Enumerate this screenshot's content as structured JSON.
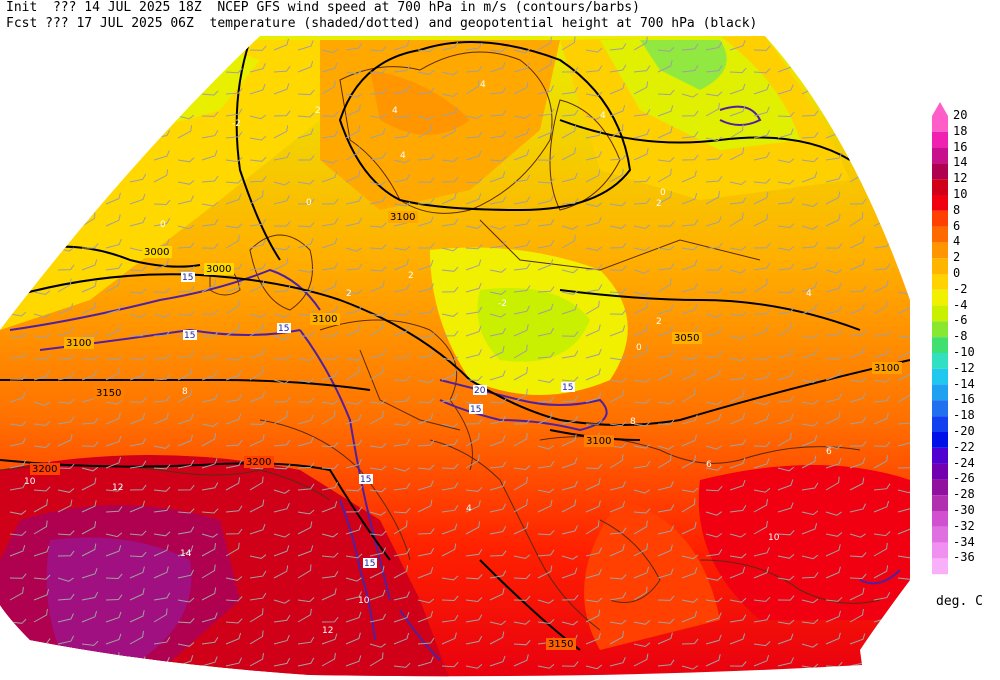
{
  "header": {
    "line1": "Init  ??? 14 JUL 2025 18Z  NCEP GFS wind speed at 700 hPa in m/s (contours/barbs)",
    "line2": "Fcst ??? 17 JUL 2025 06Z  temperature (shaded/dotted) and geopotential height at 700 hPa (black)"
  },
  "colorbar": {
    "unit": "deg. C",
    "levels": [
      {
        "label": "20",
        "color": "#ff5ec8"
      },
      {
        "label": "18",
        "color": "#f020b0"
      },
      {
        "label": "16",
        "color": "#c8108c"
      },
      {
        "label": "14",
        "color": "#b00050"
      },
      {
        "label": "12",
        "color": "#d00018"
      },
      {
        "label": "10",
        "color": "#f00010"
      },
      {
        "label": "8",
        "color": "#ff4000"
      },
      {
        "label": "6",
        "color": "#ff6a00"
      },
      {
        "label": "4",
        "color": "#ff9600"
      },
      {
        "label": "2",
        "color": "#ffb400"
      },
      {
        "label": "0",
        "color": "#ffd200"
      },
      {
        "label": "-2",
        "color": "#f0f000"
      },
      {
        "label": "-4",
        "color": "#c8f000"
      },
      {
        "label": "-6",
        "color": "#88e830"
      },
      {
        "label": "-8",
        "color": "#40e070"
      },
      {
        "label": "-10",
        "color": "#30e0c0"
      },
      {
        "label": "-12",
        "color": "#20c8f0"
      },
      {
        "label": "-14",
        "color": "#20a0f0"
      },
      {
        "label": "-16",
        "color": "#2070f0"
      },
      {
        "label": "-18",
        "color": "#1040f0"
      },
      {
        "label": "-20",
        "color": "#0010e8"
      },
      {
        "label": "-22",
        "color": "#5000d0"
      },
      {
        "label": "-24",
        "color": "#7000b0"
      },
      {
        "label": "-26",
        "color": "#9010a0"
      },
      {
        "label": "-28",
        "color": "#b030b0"
      },
      {
        "label": "-30",
        "color": "#d050d0"
      },
      {
        "label": "-32",
        "color": "#e070e0"
      },
      {
        "label": "-34",
        "color": "#f090f0"
      },
      {
        "label": "-36",
        "color": "#f8b0f8"
      }
    ]
  },
  "height_labels": [
    "3000",
    "3000",
    "3100",
    "3100",
    "3100",
    "3150",
    "3050",
    "3100",
    "3100",
    "3200",
    "3200",
    "3150"
  ],
  "temp_labels": [
    "0",
    "2",
    "4",
    "4",
    "4",
    "0",
    "2",
    "-2",
    "2",
    "2",
    "0",
    "2",
    "4",
    "6",
    "8",
    "6",
    "8",
    "10",
    "12",
    "14",
    "10",
    "12",
    "10",
    "4",
    "-2",
    "0",
    "4"
  ],
  "wind_labels": [
    "15",
    "15",
    "15",
    "20",
    "15",
    "15",
    "15",
    "15"
  ]
}
